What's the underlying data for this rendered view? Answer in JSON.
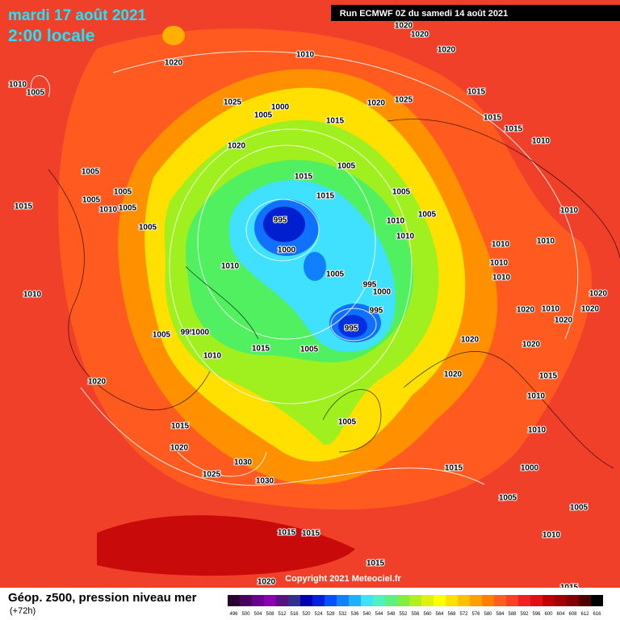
{
  "header": {
    "date": "mardi 17 août 2021",
    "time": "2:00 locale",
    "run": "Run ECMWF 0Z du samedi 14 août 2021"
  },
  "footer": {
    "title": "Géop. z500, pression niveau mer",
    "lead": "(+72h)",
    "copyright": "Copyright 2021 Meteociel.fr"
  },
  "legend": {
    "ticks": [
      496,
      500,
      504,
      508,
      512,
      516,
      520,
      524,
      528,
      532,
      536,
      540,
      544,
      548,
      552,
      556,
      560,
      564,
      568,
      572,
      576,
      580,
      584,
      588,
      592,
      596,
      600,
      604,
      608,
      612,
      616
    ],
    "colors": [
      "#2a0030",
      "#4a0060",
      "#6a0090",
      "#8a00b0",
      "#5a1080",
      "#303090",
      "#0000b0",
      "#0020e0",
      "#0050ff",
      "#1080ff",
      "#20b0ff",
      "#40e0ff",
      "#50f0c0",
      "#60f080",
      "#80f040",
      "#b0f020",
      "#e0f010",
      "#ffff00",
      "#ffe000",
      "#ffc000",
      "#ffa000",
      "#ff8000",
      "#ff6020",
      "#ff4020",
      "#f02020",
      "#e01010",
      "#c00000",
      "#a00000",
      "#800000",
      "#500000",
      "#000000"
    ]
  },
  "isobar_labels": [
    1020,
    1020,
    1020,
    1010,
    1020,
    1010,
    1005,
    1025,
    1000,
    1020,
    1025,
    1015,
    1005,
    1015,
    1015,
    1015,
    1010,
    1020,
    1005,
    1015,
    1005,
    1005,
    1005,
    1015,
    1015,
    1005,
    1010,
    1005,
    995,
    1005,
    1010,
    1010,
    1005,
    1010,
    1000,
    1010,
    1010,
    1010,
    1010,
    1005,
    995,
    1000,
    1010,
    1010,
    1020,
    995,
    1020,
    1010,
    1020,
    1020,
    995,
    1005,
    995,
    1000,
    1015,
    1005,
    1020,
    1020,
    1010,
    1015,
    1020,
    1010,
    1020,
    1005,
    1015,
    1020,
    1010,
    1030,
    1025,
    1030,
    1015,
    1000,
    1005,
    1005,
    1015,
    1015,
    1010,
    1015,
    1020,
    1015
  ]
}
